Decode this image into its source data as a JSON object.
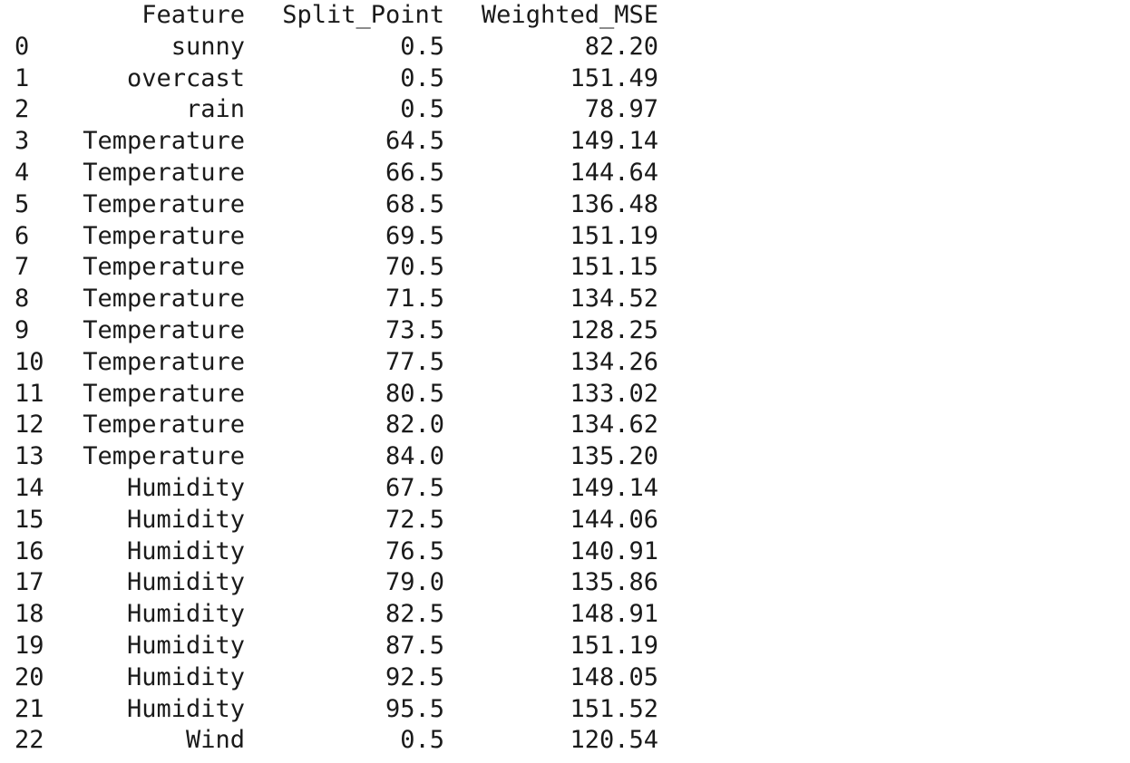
{
  "table": {
    "columns": [
      "",
      "Feature",
      "Split_Point",
      "Weighted_MSE"
    ],
    "rows": [
      {
        "index": "0",
        "feature": "sunny",
        "split_point": "0.5",
        "weighted_mse": "82.20"
      },
      {
        "index": "1",
        "feature": "overcast",
        "split_point": "0.5",
        "weighted_mse": "151.49"
      },
      {
        "index": "2",
        "feature": "rain",
        "split_point": "0.5",
        "weighted_mse": "78.97"
      },
      {
        "index": "3",
        "feature": "Temperature",
        "split_point": "64.5",
        "weighted_mse": "149.14"
      },
      {
        "index": "4",
        "feature": "Temperature",
        "split_point": "66.5",
        "weighted_mse": "144.64"
      },
      {
        "index": "5",
        "feature": "Temperature",
        "split_point": "68.5",
        "weighted_mse": "136.48"
      },
      {
        "index": "6",
        "feature": "Temperature",
        "split_point": "69.5",
        "weighted_mse": "151.19"
      },
      {
        "index": "7",
        "feature": "Temperature",
        "split_point": "70.5",
        "weighted_mse": "151.15"
      },
      {
        "index": "8",
        "feature": "Temperature",
        "split_point": "71.5",
        "weighted_mse": "134.52"
      },
      {
        "index": "9",
        "feature": "Temperature",
        "split_point": "73.5",
        "weighted_mse": "128.25"
      },
      {
        "index": "10",
        "feature": "Temperature",
        "split_point": "77.5",
        "weighted_mse": "134.26"
      },
      {
        "index": "11",
        "feature": "Temperature",
        "split_point": "80.5",
        "weighted_mse": "133.02"
      },
      {
        "index": "12",
        "feature": "Temperature",
        "split_point": "82.0",
        "weighted_mse": "134.62"
      },
      {
        "index": "13",
        "feature": "Temperature",
        "split_point": "84.0",
        "weighted_mse": "135.20"
      },
      {
        "index": "14",
        "feature": "Humidity",
        "split_point": "67.5",
        "weighted_mse": "149.14"
      },
      {
        "index": "15",
        "feature": "Humidity",
        "split_point": "72.5",
        "weighted_mse": "144.06"
      },
      {
        "index": "16",
        "feature": "Humidity",
        "split_point": "76.5",
        "weighted_mse": "140.91"
      },
      {
        "index": "17",
        "feature": "Humidity",
        "split_point": "79.0",
        "weighted_mse": "135.86"
      },
      {
        "index": "18",
        "feature": "Humidity",
        "split_point": "82.5",
        "weighted_mse": "148.91"
      },
      {
        "index": "19",
        "feature": "Humidity",
        "split_point": "87.5",
        "weighted_mse": "151.19"
      },
      {
        "index": "20",
        "feature": "Humidity",
        "split_point": "92.5",
        "weighted_mse": "148.05"
      },
      {
        "index": "21",
        "feature": "Humidity",
        "split_point": "95.5",
        "weighted_mse": "151.52"
      },
      {
        "index": "22",
        "feature": "Wind",
        "split_point": "0.5",
        "weighted_mse": "120.54"
      }
    ]
  }
}
